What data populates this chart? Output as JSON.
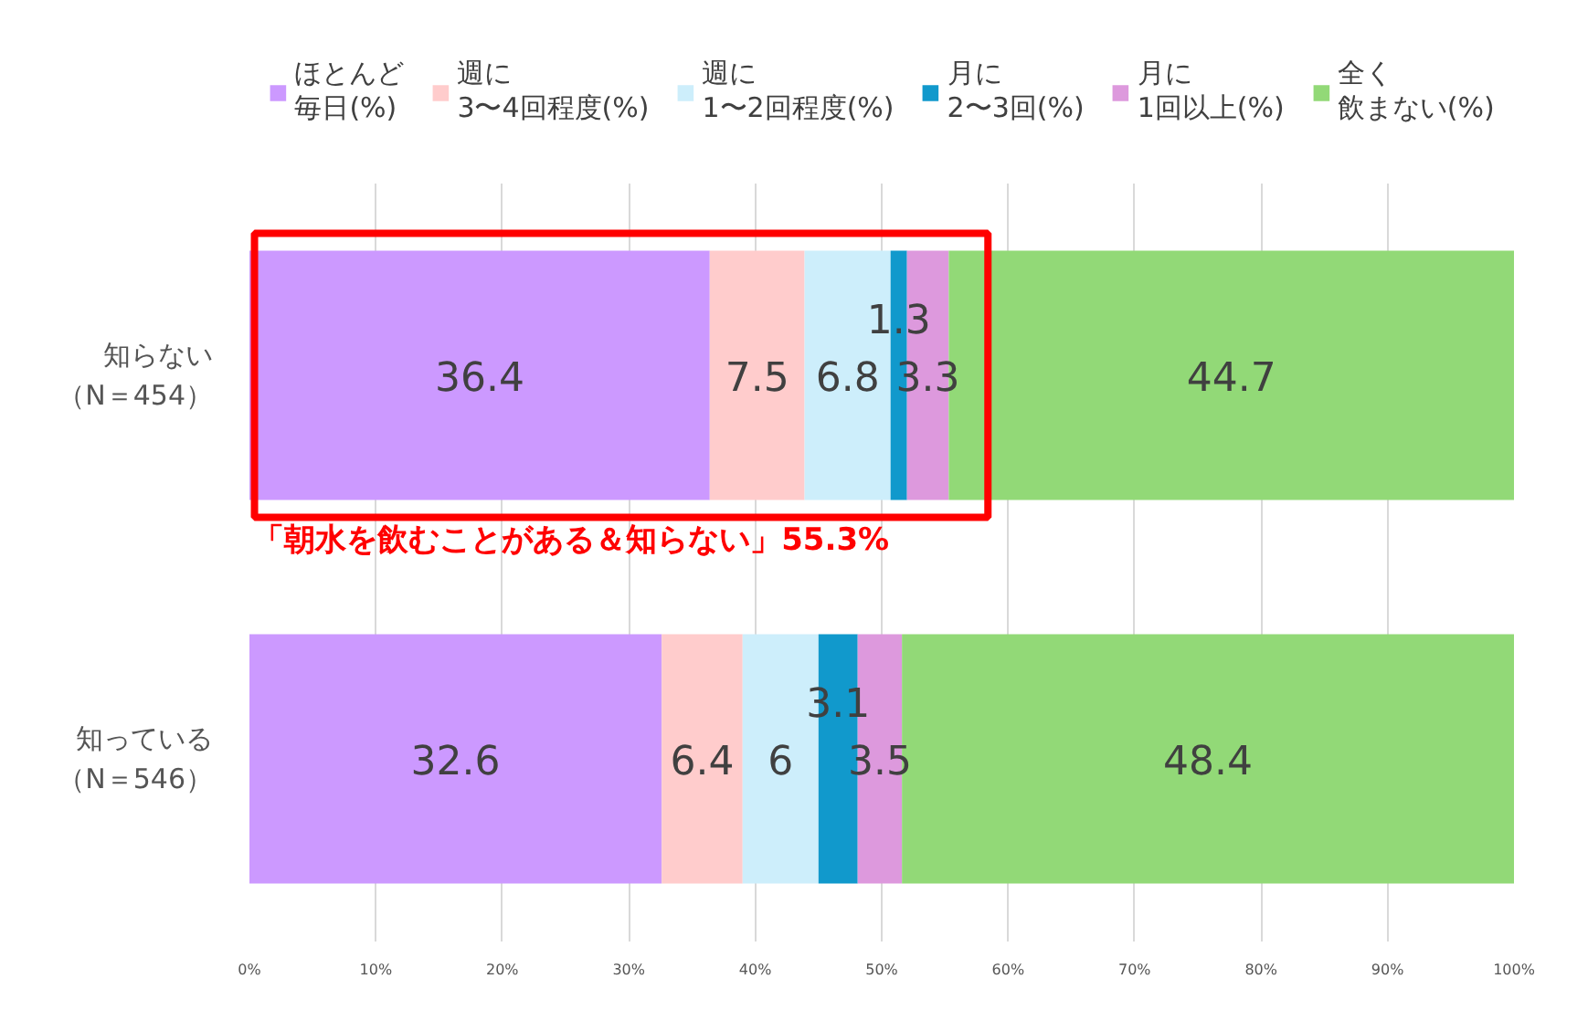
{
  "chart_data": {
    "type": "bar",
    "orientation": "horizontal",
    "stacked": true,
    "categories": [
      "知らない（N＝454）",
      "知っている（N＝546）"
    ],
    "series": [
      {
        "name": "ほとんど毎日(%)",
        "color": "#cc99ff",
        "values": [
          36.4,
          32.6
        ]
      },
      {
        "name": "週に3〜4回程度(%)",
        "color": "#ffcccc",
        "values": [
          7.5,
          6.4
        ]
      },
      {
        "name": "週に1〜2回程度(%)",
        "color": "#cdeefb",
        "values": [
          6.8,
          6
        ]
      },
      {
        "name": "月に2〜3回(%)",
        "color": "#1199cc",
        "values": [
          1.3,
          3.1
        ]
      },
      {
        "name": "月に1回以上(%)",
        "color": "#dd99dd",
        "values": [
          3.3,
          3.5
        ]
      },
      {
        "name": "全く飲まない(%)",
        "color": "#92d977",
        "values": [
          44.7,
          48.4
        ]
      }
    ],
    "xlim": [
      0,
      100
    ],
    "xticks": [
      {
        "value": 0,
        "label": "0%"
      },
      {
        "value": 10,
        "label": "10%"
      },
      {
        "value": 20,
        "label": "20%"
      },
      {
        "value": 30,
        "label": "30%"
      },
      {
        "value": 40,
        "label": "40%"
      },
      {
        "value": 50,
        "label": "50%"
      },
      {
        "value": 60,
        "label": "60%"
      },
      {
        "value": 70,
        "label": "70%"
      },
      {
        "value": 80,
        "label": "80%"
      },
      {
        "value": 90,
        "label": "90%"
      },
      {
        "value": 100,
        "label": "100%"
      }
    ],
    "data_labels": true,
    "grid": "x",
    "legend": "top",
    "annotations": [
      "「朝水を飲むことがある＆知らない」55.3%"
    ]
  }
}
